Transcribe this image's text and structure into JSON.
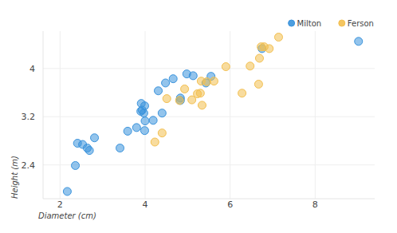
{
  "chart_data": {
    "type": "scatter",
    "x_label": "Diameter (cm)",
    "y_label": "Height (m)",
    "xlim": [
      1.6,
      9.4
    ],
    "ylim": [
      1.84,
      4.62
    ],
    "xticks": [
      2,
      4,
      6,
      8
    ],
    "yticks": [
      2.4,
      3.2,
      4
    ],
    "grid": true,
    "legend": "top-right",
    "marker": "circle",
    "series": [
      {
        "name": "Milton",
        "color": "#3a93dc",
        "x": [
          2.17,
          2.36,
          2.41,
          2.53,
          2.64,
          2.69,
          2.81,
          3.41,
          3.59,
          3.8,
          3.99,
          4.0,
          4.19,
          4.4,
          3.91,
          3.93,
          3.99,
          3.97,
          3.9,
          4.31,
          4.48,
          4.66,
          4.83,
          4.83,
          4.98,
          5.13,
          5.43,
          5.55,
          6.75,
          9.02
        ],
        "values": [
          1.96,
          2.39,
          2.76,
          2.74,
          2.68,
          2.64,
          2.85,
          2.68,
          2.96,
          3.02,
          2.97,
          3.13,
          3.14,
          3.26,
          3.42,
          3.31,
          3.38,
          3.26,
          3.29,
          3.63,
          3.76,
          3.83,
          3.51,
          3.47,
          3.91,
          3.88,
          3.76,
          3.87,
          4.33,
          4.45
        ]
      },
      {
        "name": "Ferson",
        "color": "#f3bf4f",
        "x": [
          4.23,
          4.4,
          4.51,
          4.81,
          4.93,
          5.1,
          5.23,
          5.32,
          5.3,
          5.34,
          5.45,
          5.62,
          5.9,
          6.28,
          6.47,
          6.67,
          6.69,
          6.73,
          6.8,
          6.92,
          7.14
        ],
        "values": [
          2.78,
          2.93,
          3.5,
          3.47,
          3.66,
          3.48,
          3.58,
          3.79,
          3.59,
          3.39,
          3.78,
          3.79,
          4.03,
          3.59,
          4.04,
          3.74,
          4.17,
          4.36,
          4.36,
          4.33,
          4.52
        ]
      }
    ]
  }
}
